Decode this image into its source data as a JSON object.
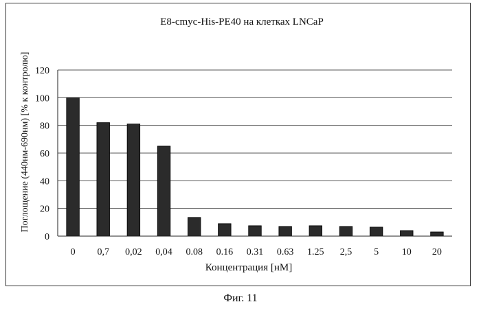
{
  "figure_caption": "Фиг. 11",
  "chart_data": {
    "type": "bar",
    "title": "E8-cmyc-His-PE40 на клетках LNCaP",
    "xlabel": "Концентрация [нМ]",
    "ylabel": "Поглощение (440нм-690нм) [% к контролю]",
    "ylim": [
      0,
      120
    ],
    "yticks": [
      "0",
      "20",
      "40",
      "60",
      "80",
      "100",
      "120"
    ],
    "grid": true,
    "legend": "none",
    "bar_color": "#2b2b2b",
    "categories": [
      "0",
      "0,7",
      "0,02",
      "0,04",
      "0.08",
      "0.16",
      "0.31",
      "0.63",
      "1.25",
      "2,5",
      "5",
      "10",
      "20"
    ],
    "values": [
      100,
      82,
      81,
      65,
      13.5,
      9,
      7.5,
      7,
      7.5,
      7,
      6.5,
      4,
      3
    ]
  }
}
